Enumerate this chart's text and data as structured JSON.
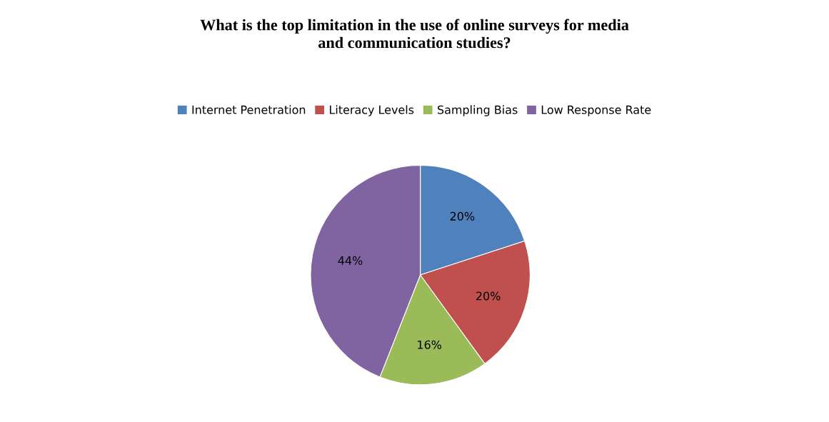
{
  "chart_data": {
    "type": "pie",
    "title": "What is the top limitation in the use of online surveys for media\nand communication studies?",
    "categories": [
      "Internet Penetration",
      "Literacy Levels",
      "Sampling Bias",
      "Low Response Rate"
    ],
    "values": [
      20,
      20,
      16,
      44
    ],
    "value_labels": [
      "20%",
      "20%",
      "16%",
      "44%"
    ],
    "colors": [
      "#4f81bd",
      "#c0504d",
      "#9bbb59",
      "#8064a2"
    ],
    "legend": "top"
  }
}
